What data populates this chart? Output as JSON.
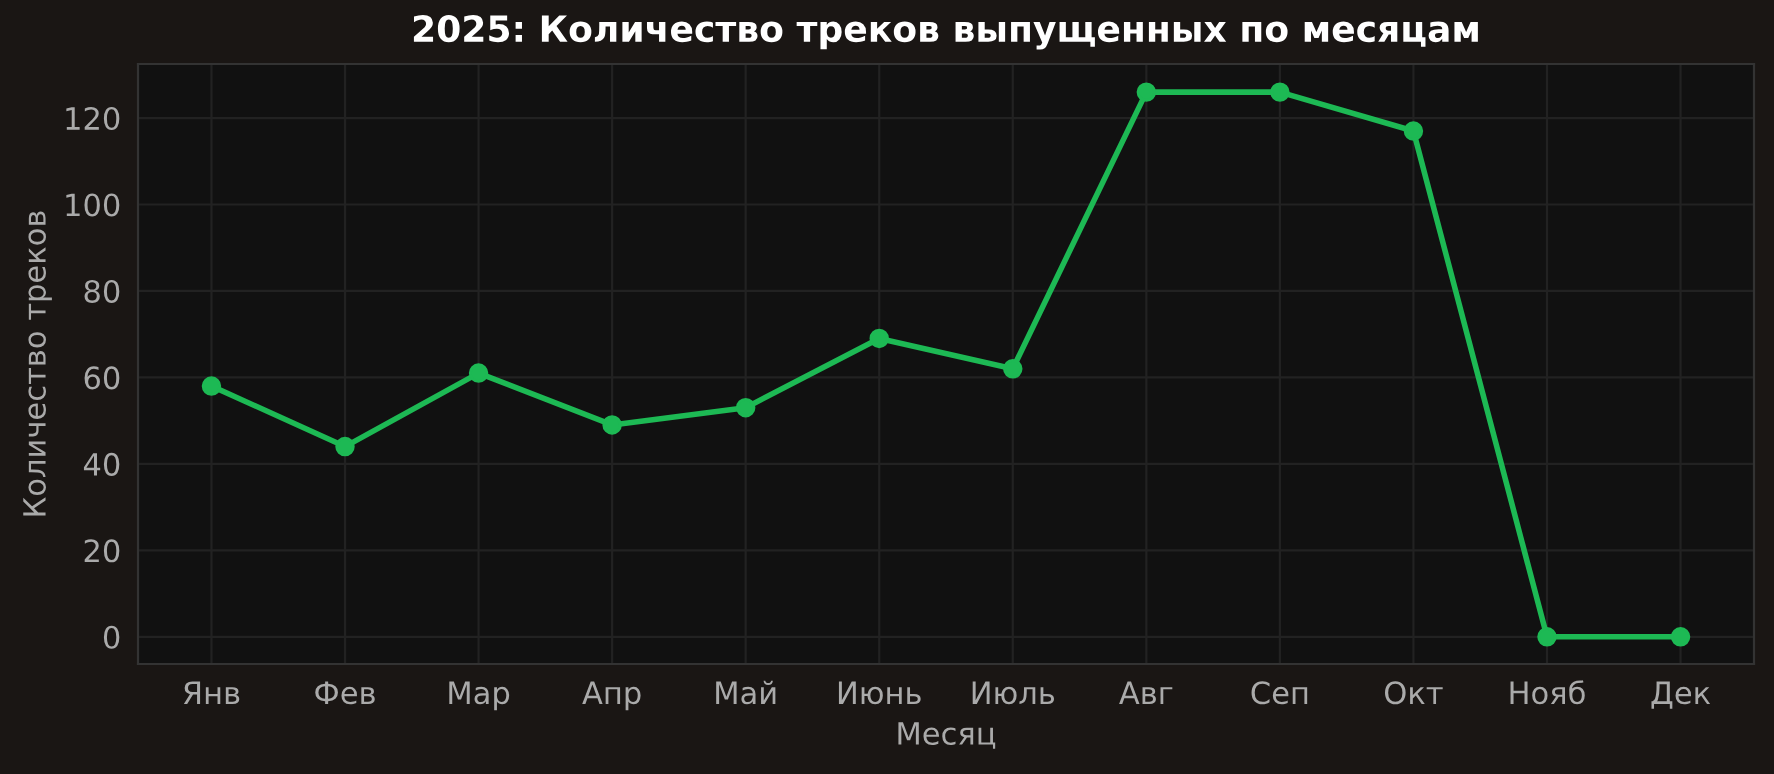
{
  "chart_data": {
    "type": "line",
    "title": "2025: Количество треков выпущенных по месяцам",
    "xlabel": "Месяц",
    "ylabel": "Количество треков",
    "categories": [
      "Янв",
      "Фев",
      "Мар",
      "Апр",
      "Май",
      "Июнь",
      "Июль",
      "Авг",
      "Сеп",
      "Окт",
      "Нояб",
      "Дек"
    ],
    "series": [
      {
        "color": "#1db954",
        "values": [
          58,
          44,
          61,
          49,
          53,
          69,
          62,
          126,
          126,
          117,
          0,
          0
        ]
      }
    ],
    "ylim": [
      -6.3,
      132.5
    ],
    "yticks": [
      0,
      20,
      40,
      60,
      80,
      100,
      120
    ],
    "grid": true,
    "marker": "circle",
    "line_style": "solid"
  }
}
